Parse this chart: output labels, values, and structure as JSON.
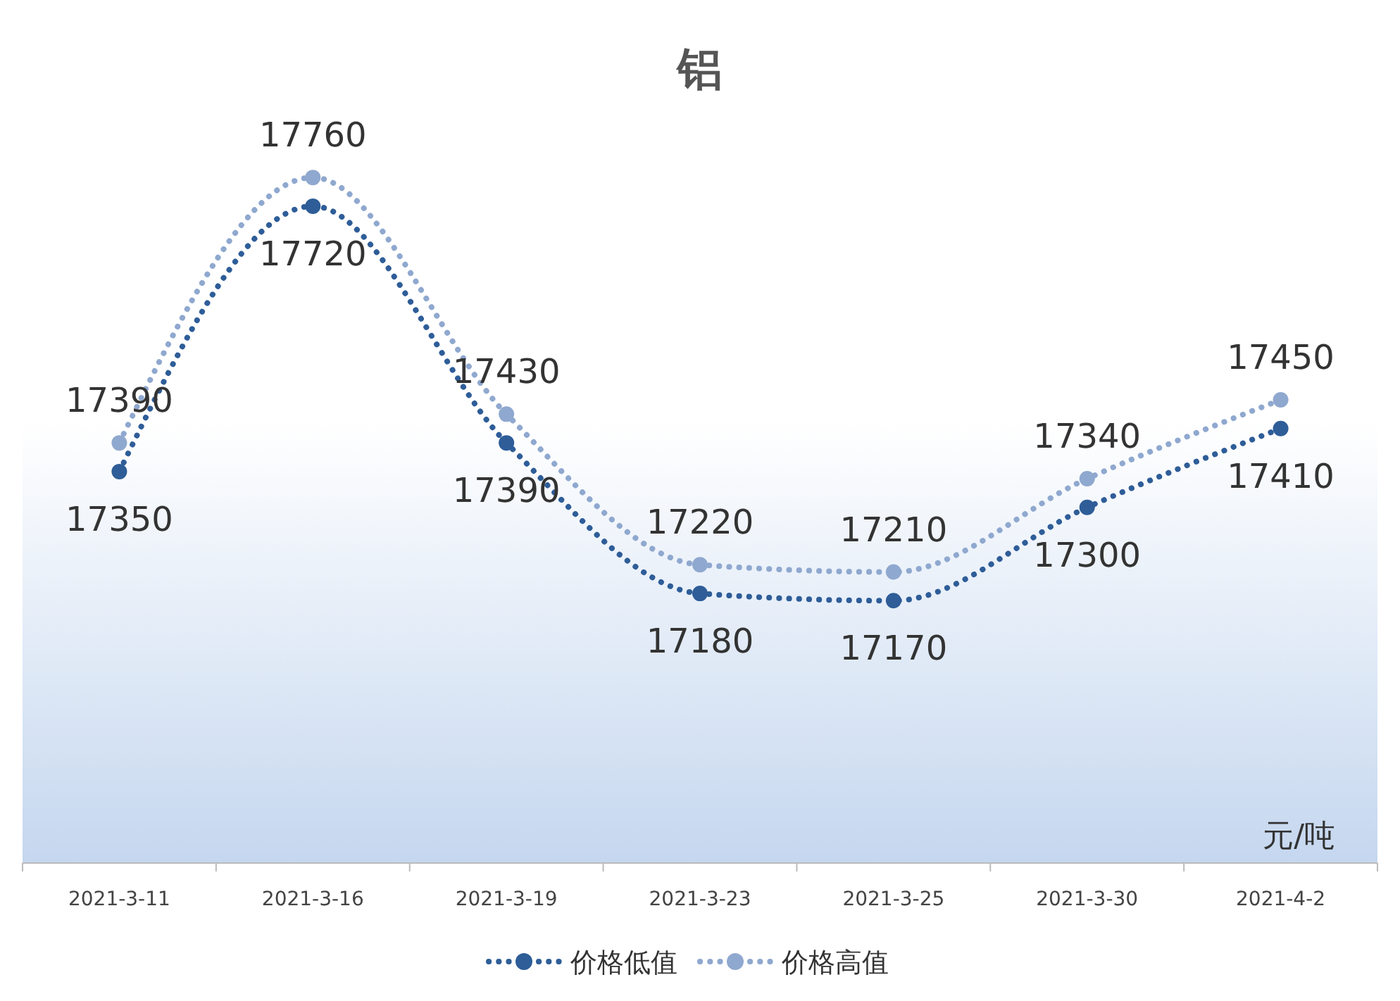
{
  "chart_data": {
    "type": "line",
    "title": "铝",
    "categories": [
      "2021-3-11",
      "2021-3-16",
      "2021-3-19",
      "2021-3-23",
      "2021-3-25",
      "2021-3-30",
      "2021-4-2"
    ],
    "series": [
      {
        "name": "价格低值",
        "color": "#2e5d98",
        "values": [
          17350,
          17720,
          17390,
          17180,
          17170,
          17300,
          17410
        ]
      },
      {
        "name": "价格高值",
        "color": "#8fa8cf",
        "values": [
          17390,
          17760,
          17430,
          17220,
          17210,
          17340,
          17450
        ]
      }
    ],
    "annotations": [
      "元/吨"
    ],
    "data_labels": true,
    "marker": "circle",
    "line_style": "dotted",
    "legend": "bottom",
    "grid": false
  }
}
